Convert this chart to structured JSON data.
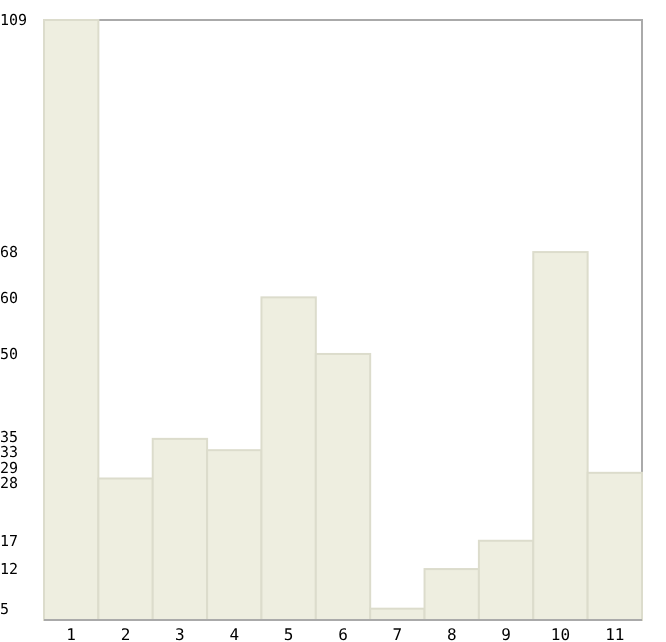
{
  "chart_data": {
    "type": "bar",
    "categories": [
      "1",
      "2",
      "3",
      "4",
      "5",
      "6",
      "7",
      "8",
      "9",
      "10",
      "11"
    ],
    "values": [
      109,
      28,
      35,
      33,
      60,
      50,
      5,
      12,
      17,
      68,
      29
    ],
    "color": "#eeeee0",
    "ylim": [
      3,
      109
    ],
    "yticks": [
      5,
      12,
      17,
      28,
      29,
      33,
      35,
      50,
      60,
      68,
      109
    ],
    "grid": false
  }
}
